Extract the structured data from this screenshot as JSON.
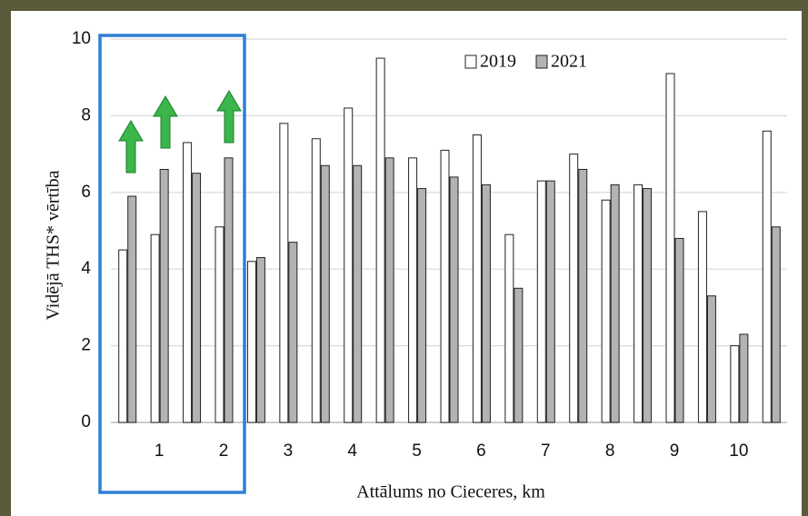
{
  "chart_data": {
    "type": "bar",
    "x_label": "Attālums no Cieceres, km",
    "y_label": "Vidējā THS* vērtība",
    "categories": [
      null,
      "1",
      null,
      "2",
      null,
      "3",
      null,
      "4",
      null,
      "5",
      null,
      "6",
      null,
      "7",
      null,
      "8",
      null,
      "9",
      null,
      "10",
      null
    ],
    "series": [
      {
        "name": "2019",
        "color": "#ffffff",
        "values": [
          4.5,
          4.9,
          7.3,
          5.1,
          4.2,
          7.8,
          7.4,
          8.2,
          9.5,
          6.9,
          7.1,
          7.5,
          4.9,
          6.3,
          7.0,
          5.8,
          6.2,
          9.1,
          5.5,
          2.0,
          7.6
        ]
      },
      {
        "name": "2021",
        "color": "#b3b3b3",
        "values": [
          5.9,
          6.6,
          6.5,
          6.9,
          4.3,
          4.7,
          6.7,
          6.7,
          6.9,
          6.1,
          6.4,
          6.2,
          3.5,
          6.3,
          6.6,
          6.2,
          6.1,
          4.8,
          3.3,
          2.3,
          5.1
        ]
      }
    ],
    "ylim": [
      0,
      10
    ],
    "yticks": [
      0,
      2,
      4,
      6,
      8,
      10
    ],
    "grid": true
  }
}
